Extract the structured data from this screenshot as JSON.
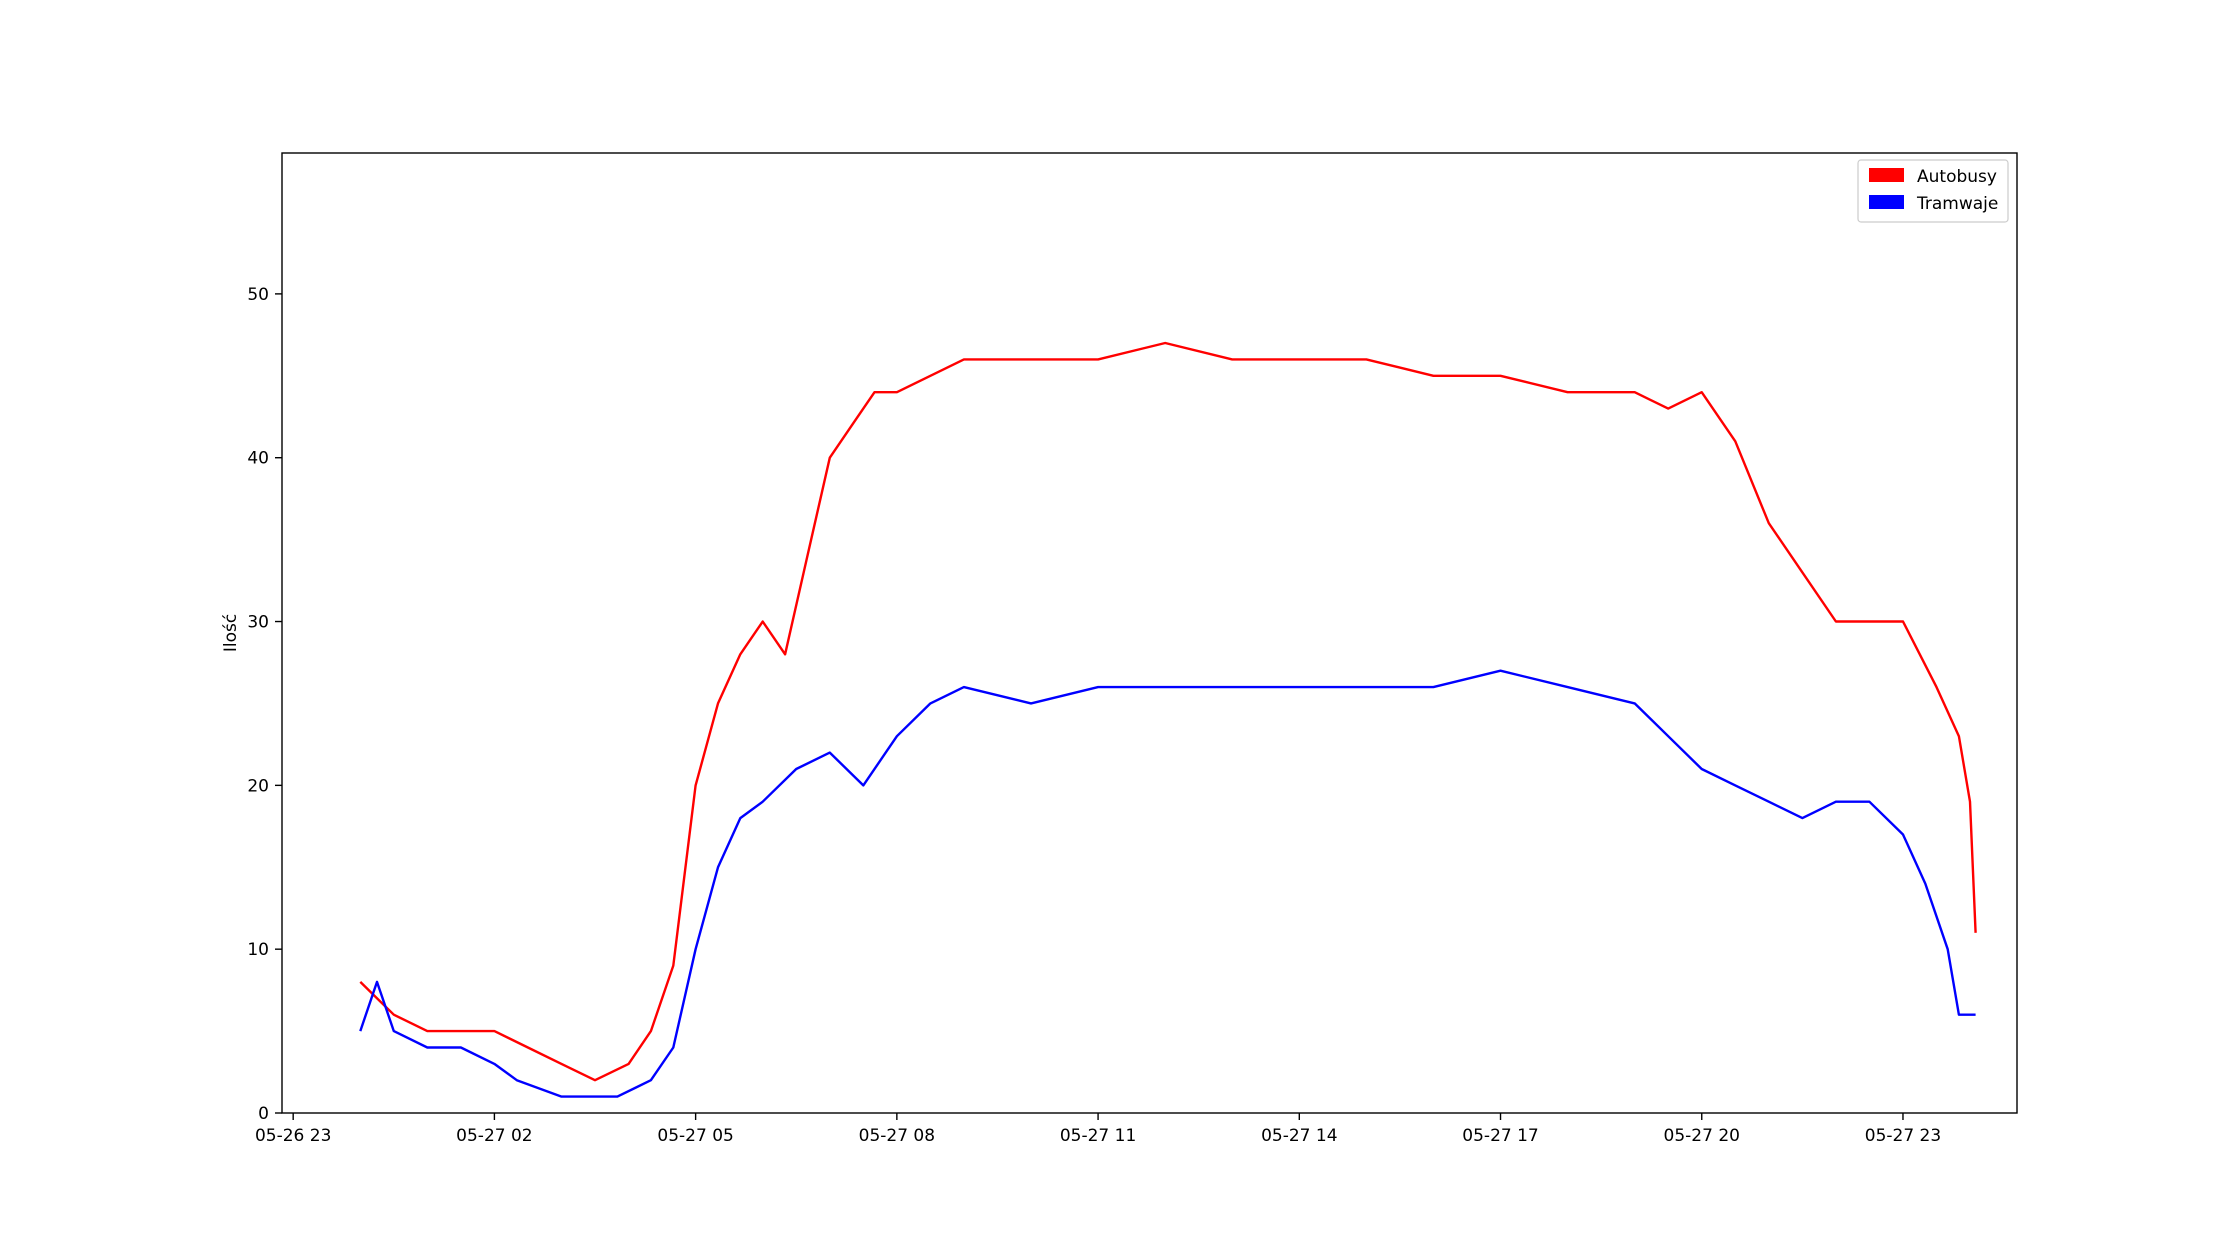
{
  "chart_data": {
    "type": "line",
    "title": "",
    "xlabel": "",
    "ylabel": "Ilość",
    "x_ticks": [
      "05-26 23",
      "05-27 02",
      "05-27 05",
      "05-27 08",
      "05-27 11",
      "05-27 14",
      "05-27 17",
      "05-27 20",
      "05-27 23"
    ],
    "y_ticks": [
      "0",
      "10",
      "20",
      "30",
      "40",
      "50"
    ],
    "xlim": [
      "2019-05-26 22:50",
      "2019-05-28 00:42"
    ],
    "ylim": [
      0,
      58.6
    ],
    "grid": false,
    "legend_position": "top-right",
    "series": [
      {
        "name": "Autobusy",
        "color": "#ff0000",
        "x": [
          "2019-05-27 00:00",
          "2019-05-27 00:30",
          "2019-05-27 01:00",
          "2019-05-27 01:30",
          "2019-05-27 02:00",
          "2019-05-27 02:30",
          "2019-05-27 03:00",
          "2019-05-27 03:30",
          "2019-05-27 04:00",
          "2019-05-27 04:20",
          "2019-05-27 04:40",
          "2019-05-27 05:00",
          "2019-05-27 05:20",
          "2019-05-27 05:40",
          "2019-05-27 06:00",
          "2019-05-27 06:20",
          "2019-05-27 06:40",
          "2019-05-27 07:00",
          "2019-05-27 07:20",
          "2019-05-27 07:40",
          "2019-05-27 08:00",
          "2019-05-27 08:30",
          "2019-05-27 09:00",
          "2019-05-27 10:00",
          "2019-05-27 11:00",
          "2019-05-27 12:00",
          "2019-05-27 13:00",
          "2019-05-27 14:00",
          "2019-05-27 15:00",
          "2019-05-27 16:00",
          "2019-05-27 17:00",
          "2019-05-27 18:00",
          "2019-05-27 19:00",
          "2019-05-27 19:30",
          "2019-05-27 20:00",
          "2019-05-27 20:30",
          "2019-05-27 21:00",
          "2019-05-27 21:30",
          "2019-05-27 22:00",
          "2019-05-27 22:30",
          "2019-05-27 23:00",
          "2019-05-27 23:30",
          "2019-05-27 23:50",
          "2019-05-28 00:00",
          "2019-05-28 00:05"
        ],
        "values": [
          8,
          6,
          5,
          5,
          5,
          4,
          3,
          2,
          3,
          5,
          9,
          20,
          25,
          28,
          30,
          28,
          34,
          40,
          42,
          44,
          44,
          45,
          46,
          46,
          46,
          47,
          46,
          46,
          46,
          45,
          45,
          44,
          44,
          43,
          44,
          41,
          36,
          33,
          30,
          30,
          30,
          26,
          23,
          19,
          11
        ]
      },
      {
        "name": "Tramwaje",
        "color": "#0000ff",
        "x": [
          "2019-05-27 00:00",
          "2019-05-27 00:15",
          "2019-05-27 00:30",
          "2019-05-27 01:00",
          "2019-05-27 01:30",
          "2019-05-27 02:00",
          "2019-05-27 02:20",
          "2019-05-27 03:00",
          "2019-05-27 03:50",
          "2019-05-27 04:20",
          "2019-05-27 04:40",
          "2019-05-27 05:00",
          "2019-05-27 05:20",
          "2019-05-27 05:40",
          "2019-05-27 06:00",
          "2019-05-27 06:30",
          "2019-05-27 07:00",
          "2019-05-27 07:30",
          "2019-05-27 08:00",
          "2019-05-27 08:30",
          "2019-05-27 09:00",
          "2019-05-27 10:00",
          "2019-05-27 11:00",
          "2019-05-27 12:00",
          "2019-05-27 13:00",
          "2019-05-27 14:00",
          "2019-05-27 15:00",
          "2019-05-27 16:00",
          "2019-05-27 17:00",
          "2019-05-27 18:00",
          "2019-05-27 19:00",
          "2019-05-27 19:30",
          "2019-05-27 20:00",
          "2019-05-27 20:30",
          "2019-05-27 21:00",
          "2019-05-27 21:30",
          "2019-05-27 22:00",
          "2019-05-27 22:30",
          "2019-05-27 23:00",
          "2019-05-27 23:20",
          "2019-05-27 23:40",
          "2019-05-27 23:50",
          "2019-05-28 00:05"
        ],
        "values": [
          5,
          8,
          5,
          4,
          4,
          3,
          2,
          1,
          1,
          2,
          4,
          10,
          15,
          18,
          19,
          21,
          22,
          20,
          23,
          25,
          26,
          25,
          26,
          26,
          26,
          26,
          26,
          26,
          27,
          26,
          25,
          23,
          21,
          20,
          19,
          18,
          19,
          19,
          17,
          14,
          10,
          6,
          6
        ]
      }
    ]
  }
}
